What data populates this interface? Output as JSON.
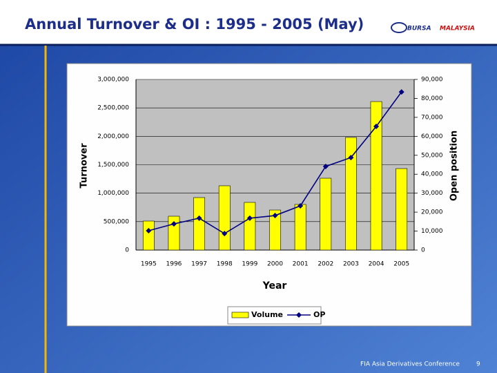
{
  "chart_data": {
    "type": "bar",
    "title": "Annual Turnover & OI : 1995 - 2005 (May)",
    "x_label": "Year",
    "y_label": "Turnover",
    "y2_label": "Open position",
    "categories": [
      "1995",
      "1996",
      "1997",
      "1998",
      "1999",
      "2000",
      "2001",
      "2002",
      "2003",
      "2004",
      "2005"
    ],
    "series": [
      {
        "name": "Volume",
        "type": "bar",
        "color": "#ffff00",
        "values": [
          510000,
          595000,
          923000,
          1130000,
          838000,
          704000,
          802000,
          1263000,
          1980000,
          2611000,
          1433000
        ]
      },
      {
        "name": "OP",
        "type": "line",
        "axis": "y2",
        "color": "#000080",
        "values": [
          10200,
          13800,
          16800,
          8700,
          16800,
          18200,
          23300,
          44100,
          48800,
          65200,
          83400
        ]
      }
    ],
    "ylim": [
      0,
      3000000
    ],
    "yticks": [
      0,
      {
        "value": 500000,
        "label": "500,000"
      },
      {
        "value": 1000000,
        "label": "1,000,000"
      },
      {
        "value": 1500000,
        "label": "1,500,000"
      },
      {
        "value": 2000000,
        "label": "2,000,000"
      },
      {
        "value": 2500000,
        "label": "2,500,000"
      },
      {
        "value": 3000000,
        "label": "3,000,000"
      }
    ],
    "y2lim": [
      0,
      90000
    ],
    "y2ticks": [
      0,
      {
        "value": 10000,
        "label": "10,000"
      },
      {
        "value": 20000,
        "label": "20,000"
      },
      {
        "value": 30000,
        "label": "30,000"
      },
      {
        "value": 40000,
        "label": "40,000"
      },
      {
        "value": 50000,
        "label": "50,000"
      },
      {
        "value": 60000,
        "label": "60,000"
      },
      {
        "value": 70000,
        "label": "70,000"
      },
      {
        "value": 80000,
        "label": "80,000"
      },
      {
        "value": 90000,
        "label": "90,000"
      }
    ],
    "grid": true,
    "legend": "bottom"
  },
  "slide": {
    "logo": [
      "BURSA",
      "MALAYSIA"
    ],
    "footer": "FIA Asia Derivatives Conference",
    "page_number": 9
  }
}
